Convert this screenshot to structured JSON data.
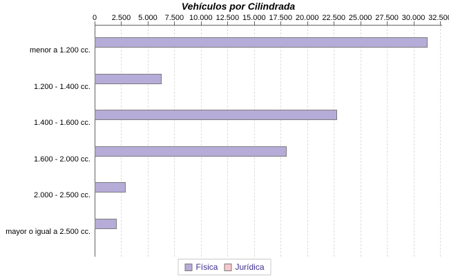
{
  "chart_data": {
    "type": "bar",
    "orientation": "horizontal",
    "title": "Vehículos por Cilindrada",
    "categories": [
      "menor a 1.200 cc.",
      "1.200 - 1.400 cc.",
      "1.400 - 1.600 cc.",
      "1.600 - 2.000 cc.",
      "2.000 - 2.500 cc.",
      "mayor o igual a 2.500 cc."
    ],
    "series": [
      {
        "name": "Física",
        "color": "#b6acd8",
        "border_color": "#7b7b7b",
        "values": [
          31300,
          6300,
          22800,
          18100,
          2900,
          2100
        ]
      },
      {
        "name": "Jurídica",
        "color": "#f7c7cc",
        "border_color": "#7b7b7b",
        "values": [
          0,
          0,
          0,
          0,
          0,
          0
        ]
      }
    ],
    "xlim": [
      0,
      32500
    ],
    "x_tick_interval": 2500,
    "x_tick_labels": [
      "0",
      "2.500",
      "5.000",
      "7.500",
      "10.000",
      "12.500",
      "15.000",
      "17.500",
      "20.000",
      "22.500",
      "25.000",
      "27.500",
      "30.000",
      "32.500"
    ],
    "grid": "vertical-dashed",
    "legend_position": "bottom"
  },
  "colors": {
    "axis_line": "#5f5f5f",
    "gridline": "#dcdcdc",
    "legend_text": "#3d2b8d",
    "text": "#000000"
  }
}
